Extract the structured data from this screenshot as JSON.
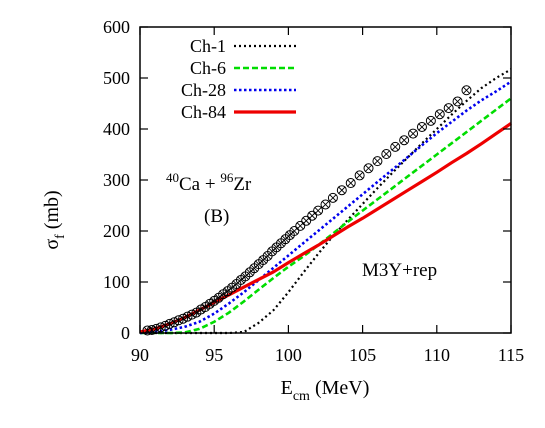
{
  "chart_data": {
    "type": "line",
    "xlabel": "E_cm (MeV)",
    "xlabel_main": "E",
    "xlabel_sub": "cm",
    "xlabel_unit": " (MeV)",
    "ylabel": "σ_f (mb)",
    "ylabel_main": "σ",
    "ylabel_sub": "f",
    "ylabel_unit": " (mb)",
    "xlim": [
      90,
      115
    ],
    "ylim": [
      0,
      600
    ],
    "xticks": [
      90,
      95,
      100,
      105,
      110,
      115
    ],
    "yticks": [
      0,
      100,
      200,
      300,
      400,
      500,
      600
    ],
    "legend_position": "top-left",
    "grid": false,
    "annotations": {
      "reaction_a1": "40",
      "reaction_el1": "Ca + ",
      "reaction_a2": "96",
      "reaction_el2": "Zr",
      "panel": "(B)",
      "potential": "M3Y+rep"
    },
    "series": [
      {
        "name": "Ch-1",
        "style": "dotted",
        "color": "#000000",
        "x": [
          90,
          94,
          96,
          97,
          98,
          99,
          100,
          101,
          102,
          103,
          104,
          105,
          106,
          107,
          108,
          109,
          110,
          111,
          112,
          113,
          114,
          115
        ],
        "y": [
          0,
          0,
          0,
          2,
          20,
          45,
          80,
          118,
          155,
          190,
          222,
          253,
          284,
          314,
          343,
          372,
          400,
          428,
          455,
          480,
          500,
          517
        ]
      },
      {
        "name": "Ch-6",
        "style": "dashed",
        "color": "#00dd00",
        "x": [
          90,
          92,
          93,
          94,
          95,
          96,
          97,
          98,
          99,
          100,
          101,
          102,
          103,
          104,
          105,
          106,
          107,
          108,
          109,
          110,
          111,
          112,
          113,
          114,
          115
        ],
        "y": [
          0,
          0,
          1,
          8,
          22,
          40,
          62,
          85,
          108,
          130,
          150,
          172,
          195,
          218,
          240,
          262,
          284,
          306,
          328,
          350,
          372,
          394,
          416,
          438,
          460
        ]
      },
      {
        "name": "Ch-28",
        "style": "dotted-thick",
        "color": "#0000ee",
        "x": [
          90,
          91,
          92,
          93,
          94,
          95,
          96,
          97,
          98,
          99,
          100,
          101,
          102,
          103,
          104,
          105,
          106,
          107,
          108,
          109,
          110,
          111,
          112,
          113,
          114,
          115
        ],
        "y": [
          0,
          2,
          6,
          12,
          22,
          38,
          58,
          80,
          104,
          128,
          152,
          176,
          200,
          224,
          248,
          272,
          296,
          320,
          344,
          368,
          392,
          414,
          436,
          456,
          474,
          493
        ]
      },
      {
        "name": "Ch-84",
        "style": "solid",
        "color": "#ee0000",
        "x": [
          90,
          91,
          92,
          93,
          94,
          95,
          96,
          97,
          98,
          99,
          100,
          101,
          102,
          103,
          104,
          105,
          106,
          107,
          108,
          109,
          110,
          111,
          112,
          113,
          114,
          115
        ],
        "y": [
          2,
          8,
          18,
          30,
          45,
          60,
          75,
          90,
          105,
          120,
          138,
          155,
          172,
          190,
          208,
          225,
          243,
          261,
          279,
          297,
          315,
          334,
          352,
          371,
          391,
          411
        ]
      }
    ],
    "experimental": {
      "marker": "circle-cross",
      "x": [
        90.5,
        90.8,
        91.1,
        91.4,
        91.7,
        92.0,
        92.3,
        92.6,
        92.9,
        93.2,
        93.5,
        93.8,
        94.1,
        94.4,
        94.7,
        95.0,
        95.3,
        95.6,
        95.9,
        96.2,
        96.5,
        96.8,
        97.1,
        97.4,
        97.7,
        98.0,
        98.3,
        98.6,
        98.9,
        99.2,
        99.5,
        99.8,
        100.1,
        100.4,
        100.8,
        101.2,
        101.6,
        102.0,
        102.5,
        103.0,
        103.6,
        104.2,
        104.8,
        105.4,
        106.0,
        106.6,
        107.2,
        107.8,
        108.4,
        109.0,
        109.6,
        110.2,
        110.8,
        111.4,
        112.0
      ],
      "y": [
        5,
        6,
        8,
        11,
        14,
        18,
        21,
        25,
        28,
        32,
        36,
        40,
        46,
        51,
        57,
        63,
        69,
        76,
        82,
        89,
        96,
        104,
        111,
        119,
        127,
        135,
        143,
        151,
        160,
        168,
        176,
        184,
        192,
        200,
        210,
        220,
        230,
        240,
        252,
        265,
        280,
        294,
        309,
        323,
        337,
        351,
        365,
        378,
        391,
        404,
        416,
        429,
        441,
        454,
        476
      ]
    }
  }
}
